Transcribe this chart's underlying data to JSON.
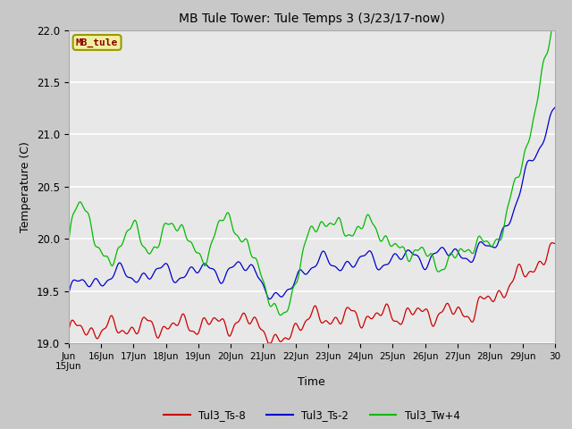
{
  "title": "MB Tule Tower: Tule Temps 3 (3/23/17-now)",
  "xlabel": "Time",
  "ylabel": "Temperature (C)",
  "ylim": [
    19.0,
    22.0
  ],
  "xlim": [
    0,
    15
  ],
  "yticks": [
    19.0,
    19.5,
    20.0,
    20.5,
    21.0,
    21.5,
    22.0
  ],
  "xtick_labels": [
    "Jun\n15Jun",
    "16Jun",
    "17Jun",
    "18Jun",
    "19Jun",
    "20Jun",
    "21Jun",
    "22Jun",
    "23Jun",
    "24Jun",
    "25Jun",
    "26Jun",
    "27Jun",
    "28Jun",
    "29Jun",
    "30"
  ],
  "legend_labels": [
    "Tul3_Ts-8",
    "Tul3_Ts-2",
    "Tul3_Tw+4"
  ],
  "colors": {
    "red": "#cc0000",
    "blue": "#0000cc",
    "green": "#00bb00"
  },
  "watermark": "MB_tule",
  "fig_bg": "#c8c8c8",
  "plot_bg": "#e8e8e8",
  "grid_color": "white"
}
